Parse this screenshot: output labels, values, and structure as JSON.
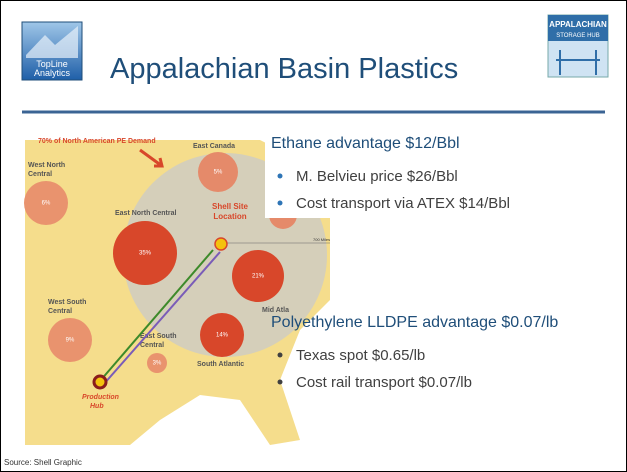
{
  "logo_left": {
    "lines": [
      "TopLine",
      "Analytics"
    ]
  },
  "title": "Appalachian Basin Plastics",
  "logo_right": {
    "lines": [
      "APPALACHIAN",
      "STORAGE HUB"
    ]
  },
  "map": {
    "headline": "70% of North American PE Demand",
    "regions": [
      {
        "lines": [
          "East Canada"
        ],
        "share": "5%"
      },
      {
        "lines": [
          "West North",
          "Central"
        ],
        "share": "6%"
      },
      {
        "lines": [
          "East North Central"
        ],
        "share": "35%"
      },
      {
        "lines": [
          "Ne"
        ],
        "share": ""
      },
      {
        "lines": [
          "Mid Atla"
        ],
        "share": "21%"
      },
      {
        "lines": [
          "West South",
          "Central"
        ],
        "share": "9%"
      },
      {
        "lines": [
          "East South",
          "Central"
        ],
        "share": "3%"
      },
      {
        "lines": [
          "South Atlantic"
        ],
        "share": "14%"
      }
    ],
    "site": [
      "Shell Site",
      "Location"
    ],
    "distance": "700 Miles",
    "hub": [
      "Production",
      "Hub"
    ]
  },
  "blocks": [
    {
      "heading": "Ethane advantage $12/Bbl",
      "bullets": [
        "M. Belvieu price $26/Bbl",
        "Cost transport via ATEX $14/Bbl"
      ]
    },
    {
      "heading": "Polyethylene LLDPE advantage $0.07/lb",
      "bullets": [
        "Texas spot $0.65/lb",
        "Cost rail transport $0.07/lb"
      ]
    }
  ],
  "source": "Source: Shell Graphic"
}
